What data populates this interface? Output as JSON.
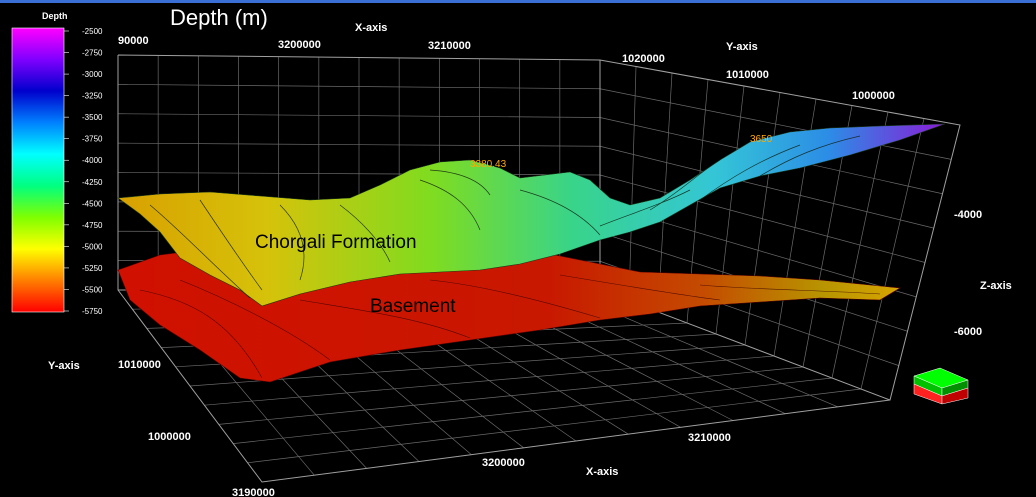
{
  "title": "Depth (m)",
  "chart_data": {
    "type": "3d-surface",
    "title": "Depth (m)",
    "colorbar": {
      "title": "Depth",
      "ticks": [
        -2500,
        -2750,
        -3000,
        -3250,
        -3500,
        -3750,
        -4000,
        -4250,
        -4500,
        -4750,
        -5000,
        -5250,
        -5500,
        -5750
      ],
      "range": [
        -5750,
        -2500
      ],
      "colors": [
        "#ff0000",
        "#ff7f00",
        "#ffff00",
        "#80ff00",
        "#00ff80",
        "#00ffff",
        "#0080ff",
        "#0000cc",
        "#8000ff",
        "#ff00ff"
      ]
    },
    "axes": {
      "x": {
        "label": "X-axis",
        "ticks_top": [
          "3200000",
          "3210000"
        ],
        "ticks_bottom": [
          "3190000",
          "3200000",
          "3210000"
        ]
      },
      "y": {
        "label": "Y-axis",
        "ticks_back": [
          "1020000",
          "1010000",
          "1000000"
        ],
        "ticks_front": [
          "1010000",
          "1000000"
        ],
        "partial_tick": "90000"
      },
      "z": {
        "label": "Z-axis",
        "ticks": [
          "-4000",
          "-6000"
        ]
      }
    },
    "grid": true,
    "surfaces": [
      {
        "name": "Chorgali Formation",
        "depth_range": [
          -5500,
          -2750
        ]
      },
      {
        "name": "Basement",
        "depth_range": [
          -5750,
          -5250
        ]
      }
    ],
    "annotations": [
      "3380.43",
      "3650"
    ]
  }
}
